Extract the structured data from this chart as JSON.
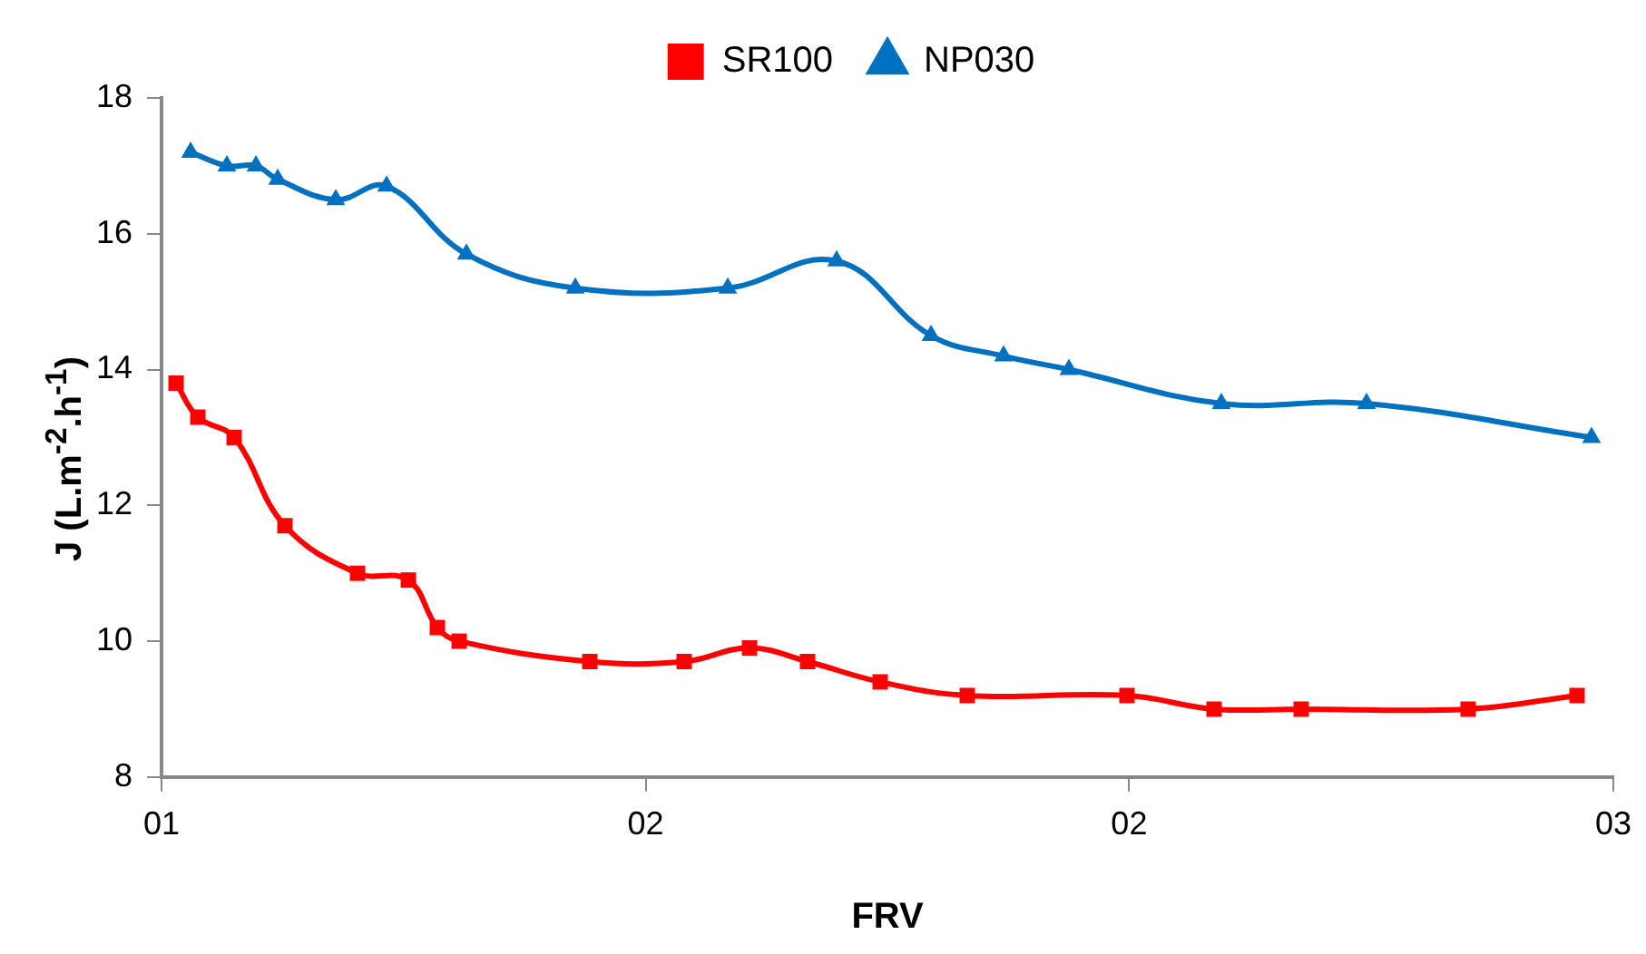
{
  "chart_data": {
    "type": "line",
    "xlabel": "FRV",
    "ylabel": "J (L.m$^{-2}$.h$^{-1}$)",
    "xlim": [
      1,
      3
    ],
    "xticks": [
      {
        "value": 1,
        "label": "01"
      },
      {
        "value": 1.667,
        "label": "02"
      },
      {
        "value": 2.333,
        "label": "02"
      },
      {
        "value": 3,
        "label": "03"
      }
    ],
    "ylim": [
      8,
      18
    ],
    "yticks": [
      8,
      10,
      12,
      14,
      16,
      18
    ],
    "grid": false,
    "legend": "top",
    "line_style": "solid",
    "series": [
      {
        "name": "SR100",
        "color": "#ff0000",
        "marker": "square",
        "x": [
          1.02,
          1.05,
          1.1,
          1.17,
          1.27,
          1.34,
          1.38,
          1.41,
          1.59,
          1.72,
          1.81,
          1.89,
          1.99,
          2.11,
          2.33,
          2.45,
          2.57,
          2.8,
          2.95
        ],
        "values": [
          13.8,
          13.3,
          13.0,
          11.7,
          11.0,
          10.9,
          10.2,
          10.0,
          9.7,
          9.7,
          9.9,
          9.7,
          9.4,
          9.2,
          9.2,
          9.0,
          9.0,
          9.0,
          9.2
        ]
      },
      {
        "name": "NP030",
        "color": "#0070c0",
        "marker": "triangle",
        "x": [
          1.04,
          1.09,
          1.13,
          1.16,
          1.24,
          1.31,
          1.42,
          1.57,
          1.78,
          1.93,
          2.06,
          2.16,
          2.25,
          2.46,
          2.66,
          2.97
        ],
        "values": [
          17.2,
          17.0,
          17.0,
          16.8,
          16.5,
          16.7,
          15.7,
          15.2,
          15.2,
          15.6,
          14.5,
          14.2,
          14.0,
          13.5,
          13.5,
          13.0
        ]
      }
    ]
  }
}
